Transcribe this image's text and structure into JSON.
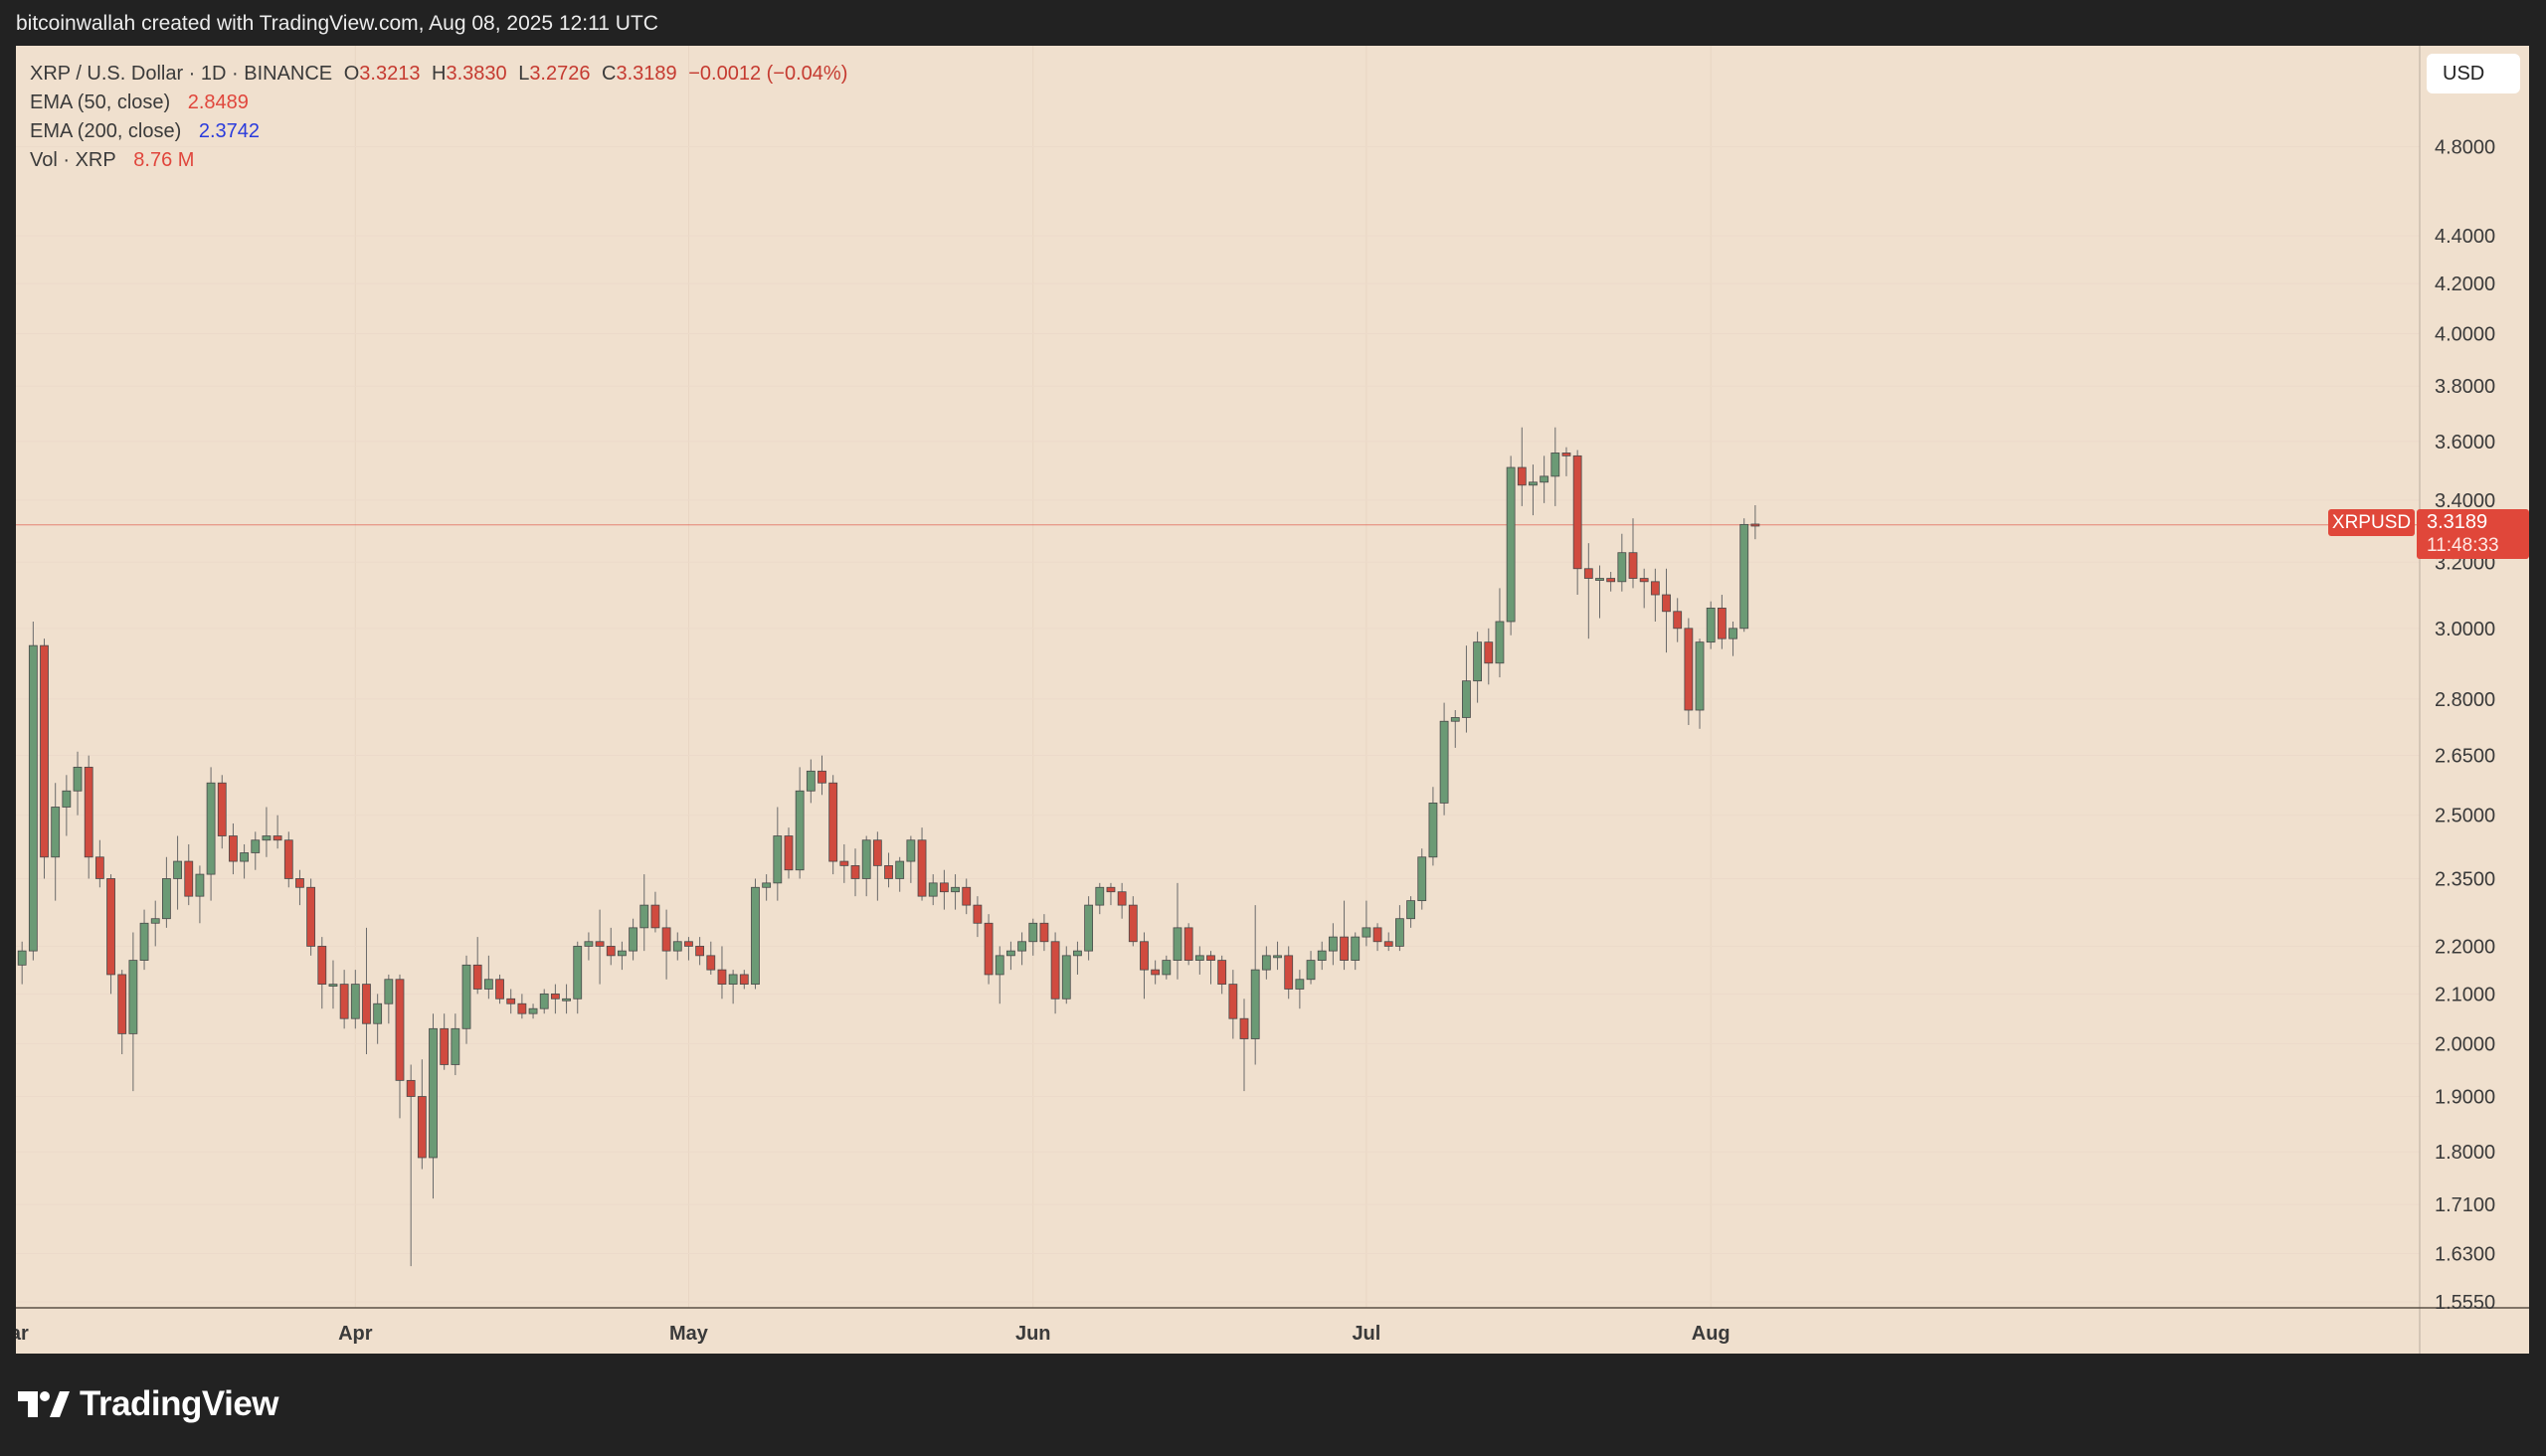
{
  "header": {
    "attribution": "bitcoinwallah created with TradingView.com, Aug 08, 2025 12:11 UTC"
  },
  "legend": {
    "symbol_line": "XRP / U.S. Dollar · 1D · BINANCE",
    "open_label": "O",
    "open": "3.3213",
    "high_label": "H",
    "high": "3.3830",
    "low_label": "L",
    "low": "3.2726",
    "close_label": "C",
    "close": "3.3189",
    "change": "−0.0012 (−0.04%)",
    "ema50_label": "EMA (50, close)",
    "ema50_value": "2.8489",
    "ema200_label": "EMA (200, close)",
    "ema200_value": "2.3742",
    "vol_label": "Vol · XRP",
    "vol_value": "8.76 M"
  },
  "currency_button": "USD",
  "price_marker": {
    "symbol": "XRPUSD",
    "price": "3.3189",
    "countdown": "11:48:33"
  },
  "footer": {
    "brand": "TradingView"
  },
  "colors": {
    "background": "#f0e0ce",
    "up": "#6b9a75",
    "down": "#d04b3f",
    "wick": "#6a6a6a",
    "price_line": "#e0473a"
  },
  "chart_data": {
    "type": "candlestick",
    "scale": "log",
    "ylim": [
      1.555,
      5.1
    ],
    "y_ticks": [
      "4.8000",
      "4.4000",
      "4.2000",
      "4.0000",
      "3.8000",
      "3.6000",
      "3.4000",
      "3.2000",
      "3.0000",
      "2.8000",
      "2.6500",
      "2.5000",
      "2.3500",
      "2.2000",
      "2.1000",
      "2.0000",
      "1.9000",
      "1.8000",
      "1.7100",
      "1.6300",
      "1.5550"
    ],
    "x_ticks": [
      {
        "label": "Mar",
        "day": 1
      },
      {
        "label": "Apr",
        "day": 32
      },
      {
        "label": "May",
        "day": 62
      },
      {
        "label": "Jun",
        "day": 93
      },
      {
        "label": "Jul",
        "day": 123
      },
      {
        "label": "Aug",
        "day": 154
      }
    ],
    "x_range_days": [
      1,
      182
    ],
    "current_price": 3.3189,
    "candles": [
      [
        1,
        2.2,
        2.22,
        2.18,
        2.16
      ],
      [
        2,
        2.16,
        2.21,
        2.12,
        2.19
      ],
      [
        3,
        2.19,
        3.02,
        2.17,
        2.95
      ],
      [
        4,
        2.95,
        2.97,
        2.35,
        2.4
      ],
      [
        5,
        2.4,
        2.58,
        2.3,
        2.52
      ],
      [
        6,
        2.52,
        2.6,
        2.45,
        2.56
      ],
      [
        7,
        2.56,
        2.66,
        2.5,
        2.62
      ],
      [
        8,
        2.62,
        2.65,
        2.35,
        2.4
      ],
      [
        9,
        2.4,
        2.44,
        2.33,
        2.35
      ],
      [
        10,
        2.35,
        2.36,
        2.1,
        2.14
      ],
      [
        11,
        2.14,
        2.15,
        1.98,
        2.02
      ],
      [
        12,
        2.02,
        2.23,
        1.91,
        2.17
      ],
      [
        13,
        2.17,
        2.28,
        2.15,
        2.25
      ],
      [
        14,
        2.25,
        2.3,
        2.2,
        2.26
      ],
      [
        15,
        2.26,
        2.4,
        2.24,
        2.35
      ],
      [
        16,
        2.35,
        2.45,
        2.28,
        2.39
      ],
      [
        17,
        2.39,
        2.43,
        2.29,
        2.31
      ],
      [
        18,
        2.31,
        2.38,
        2.25,
        2.36
      ],
      [
        19,
        2.36,
        2.62,
        2.3,
        2.58
      ],
      [
        20,
        2.58,
        2.6,
        2.42,
        2.45
      ],
      [
        21,
        2.45,
        2.48,
        2.36,
        2.39
      ],
      [
        22,
        2.39,
        2.43,
        2.35,
        2.41
      ],
      [
        23,
        2.41,
        2.46,
        2.37,
        2.44
      ],
      [
        24,
        2.44,
        2.52,
        2.4,
        2.45
      ],
      [
        25,
        2.45,
        2.5,
        2.42,
        2.44
      ],
      [
        26,
        2.44,
        2.46,
        2.33,
        2.35
      ],
      [
        27,
        2.35,
        2.37,
        2.29,
        2.33
      ],
      [
        28,
        2.33,
        2.35,
        2.18,
        2.2
      ],
      [
        29,
        2.2,
        2.22,
        2.07,
        2.12
      ],
      [
        30,
        2.12,
        2.17,
        2.07,
        2.12
      ],
      [
        31,
        2.12,
        2.15,
        2.03,
        2.05
      ],
      [
        32,
        2.05,
        2.15,
        2.03,
        2.12
      ],
      [
        33,
        2.12,
        2.24,
        1.98,
        2.04
      ],
      [
        34,
        2.04,
        2.1,
        2.0,
        2.08
      ],
      [
        35,
        2.08,
        2.14,
        2.04,
        2.13
      ],
      [
        36,
        2.13,
        2.14,
        1.86,
        1.93
      ],
      [
        37,
        1.93,
        1.96,
        1.61,
        1.9
      ],
      [
        38,
        1.9,
        1.97,
        1.77,
        1.79
      ],
      [
        39,
        1.79,
        2.06,
        1.72,
        2.03
      ],
      [
        40,
        2.03,
        2.06,
        1.95,
        1.96
      ],
      [
        41,
        1.96,
        2.06,
        1.94,
        2.03
      ],
      [
        42,
        2.03,
        2.18,
        2.0,
        2.16
      ],
      [
        43,
        2.16,
        2.22,
        2.1,
        2.11
      ],
      [
        44,
        2.11,
        2.18,
        2.09,
        2.13
      ],
      [
        45,
        2.13,
        2.14,
        2.08,
        2.09
      ],
      [
        46,
        2.09,
        2.11,
        2.06,
        2.08
      ],
      [
        47,
        2.08,
        2.1,
        2.05,
        2.06
      ],
      [
        48,
        2.06,
        2.08,
        2.05,
        2.07
      ],
      [
        49,
        2.07,
        2.11,
        2.06,
        2.1
      ],
      [
        50,
        2.1,
        2.12,
        2.06,
        2.09
      ],
      [
        51,
        2.09,
        2.12,
        2.06,
        2.09
      ],
      [
        52,
        2.09,
        2.21,
        2.06,
        2.2
      ],
      [
        53,
        2.2,
        2.23,
        2.17,
        2.21
      ],
      [
        54,
        2.21,
        2.28,
        2.12,
        2.2
      ],
      [
        55,
        2.2,
        2.24,
        2.16,
        2.18
      ],
      [
        56,
        2.18,
        2.21,
        2.15,
        2.19
      ],
      [
        57,
        2.19,
        2.26,
        2.17,
        2.24
      ],
      [
        58,
        2.24,
        2.36,
        2.19,
        2.29
      ],
      [
        59,
        2.29,
        2.32,
        2.23,
        2.24
      ],
      [
        60,
        2.24,
        2.28,
        2.13,
        2.19
      ],
      [
        61,
        2.19,
        2.23,
        2.17,
        2.21
      ],
      [
        62,
        2.21,
        2.22,
        2.17,
        2.2
      ],
      [
        63,
        2.2,
        2.22,
        2.16,
        2.18
      ],
      [
        64,
        2.18,
        2.21,
        2.14,
        2.15
      ],
      [
        65,
        2.15,
        2.2,
        2.09,
        2.12
      ],
      [
        66,
        2.12,
        2.15,
        2.08,
        2.14
      ],
      [
        67,
        2.14,
        2.15,
        2.11,
        2.12
      ],
      [
        68,
        2.12,
        2.35,
        2.11,
        2.33
      ],
      [
        69,
        2.33,
        2.36,
        2.3,
        2.34
      ],
      [
        70,
        2.34,
        2.52,
        2.3,
        2.45
      ],
      [
        71,
        2.45,
        2.47,
        2.35,
        2.37
      ],
      [
        72,
        2.37,
        2.62,
        2.35,
        2.56
      ],
      [
        73,
        2.56,
        2.64,
        2.53,
        2.61
      ],
      [
        74,
        2.61,
        2.65,
        2.55,
        2.58
      ],
      [
        75,
        2.58,
        2.6,
        2.36,
        2.39
      ],
      [
        76,
        2.39,
        2.43,
        2.34,
        2.38
      ],
      [
        77,
        2.38,
        2.42,
        2.31,
        2.35
      ],
      [
        78,
        2.35,
        2.45,
        2.31,
        2.44
      ],
      [
        79,
        2.44,
        2.46,
        2.3,
        2.38
      ],
      [
        80,
        2.38,
        2.41,
        2.33,
        2.35
      ],
      [
        81,
        2.35,
        2.4,
        2.32,
        2.39
      ],
      [
        82,
        2.39,
        2.45,
        2.34,
        2.44
      ],
      [
        83,
        2.44,
        2.47,
        2.3,
        2.31
      ],
      [
        84,
        2.31,
        2.36,
        2.29,
        2.34
      ],
      [
        85,
        2.34,
        2.37,
        2.28,
        2.32
      ],
      [
        86,
        2.32,
        2.36,
        2.28,
        2.33
      ],
      [
        87,
        2.33,
        2.35,
        2.27,
        2.29
      ],
      [
        88,
        2.29,
        2.31,
        2.22,
        2.25
      ],
      [
        89,
        2.25,
        2.27,
        2.12,
        2.14
      ],
      [
        90,
        2.14,
        2.2,
        2.08,
        2.18
      ],
      [
        91,
        2.18,
        2.21,
        2.15,
        2.19
      ],
      [
        92,
        2.19,
        2.23,
        2.16,
        2.21
      ],
      [
        93,
        2.21,
        2.26,
        2.18,
        2.25
      ],
      [
        94,
        2.25,
        2.27,
        2.19,
        2.21
      ],
      [
        95,
        2.21,
        2.23,
        2.06,
        2.09
      ],
      [
        96,
        2.09,
        2.2,
        2.08,
        2.18
      ],
      [
        97,
        2.18,
        2.21,
        2.14,
        2.19
      ],
      [
        98,
        2.19,
        2.31,
        2.17,
        2.29
      ],
      [
        99,
        2.29,
        2.34,
        2.27,
        2.33
      ],
      [
        100,
        2.33,
        2.34,
        2.29,
        2.32
      ],
      [
        101,
        2.32,
        2.34,
        2.26,
        2.29
      ],
      [
        102,
        2.29,
        2.31,
        2.2,
        2.21
      ],
      [
        103,
        2.21,
        2.23,
        2.09,
        2.15
      ],
      [
        104,
        2.15,
        2.17,
        2.12,
        2.14
      ],
      [
        105,
        2.14,
        2.18,
        2.13,
        2.17
      ],
      [
        106,
        2.17,
        2.34,
        2.13,
        2.24
      ],
      [
        107,
        2.24,
        2.25,
        2.16,
        2.17
      ],
      [
        108,
        2.17,
        2.2,
        2.14,
        2.18
      ],
      [
        109,
        2.18,
        2.19,
        2.12,
        2.17
      ],
      [
        110,
        2.17,
        2.18,
        2.1,
        2.12
      ],
      [
        111,
        2.12,
        2.15,
        2.01,
        2.05
      ],
      [
        112,
        2.05,
        2.09,
        1.91,
        2.01
      ],
      [
        113,
        2.01,
        2.29,
        1.96,
        2.15
      ],
      [
        114,
        2.15,
        2.2,
        2.13,
        2.18
      ],
      [
        115,
        2.18,
        2.21,
        2.15,
        2.18
      ],
      [
        116,
        2.18,
        2.2,
        2.09,
        2.11
      ],
      [
        117,
        2.11,
        2.15,
        2.07,
        2.13
      ],
      [
        118,
        2.13,
        2.19,
        2.12,
        2.17
      ],
      [
        119,
        2.17,
        2.21,
        2.15,
        2.19
      ],
      [
        120,
        2.19,
        2.25,
        2.16,
        2.22
      ],
      [
        121,
        2.22,
        2.3,
        2.15,
        2.17
      ],
      [
        122,
        2.17,
        2.23,
        2.15,
        2.22
      ],
      [
        123,
        2.22,
        2.3,
        2.2,
        2.24
      ],
      [
        124,
        2.24,
        2.25,
        2.19,
        2.21
      ],
      [
        125,
        2.21,
        2.23,
        2.19,
        2.2
      ],
      [
        126,
        2.2,
        2.29,
        2.19,
        2.26
      ],
      [
        127,
        2.26,
        2.31,
        2.24,
        2.3
      ],
      [
        128,
        2.3,
        2.42,
        2.28,
        2.4
      ],
      [
        129,
        2.4,
        2.57,
        2.38,
        2.53
      ],
      [
        130,
        2.53,
        2.79,
        2.5,
        2.74
      ],
      [
        131,
        2.74,
        2.77,
        2.67,
        2.75
      ],
      [
        132,
        2.75,
        2.95,
        2.71,
        2.85
      ],
      [
        133,
        2.85,
        2.99,
        2.79,
        2.96
      ],
      [
        134,
        2.96,
        3.0,
        2.84,
        2.9
      ],
      [
        135,
        2.9,
        3.12,
        2.86,
        3.02
      ],
      [
        136,
        3.02,
        3.55,
        2.98,
        3.51
      ],
      [
        137,
        3.51,
        3.65,
        3.38,
        3.45
      ],
      [
        138,
        3.45,
        3.52,
        3.35,
        3.46
      ],
      [
        139,
        3.46,
        3.55,
        3.39,
        3.48
      ],
      [
        140,
        3.48,
        3.65,
        3.38,
        3.56
      ],
      [
        141,
        3.56,
        3.58,
        3.48,
        3.55
      ],
      [
        142,
        3.55,
        3.57,
        3.1,
        3.18
      ],
      [
        143,
        3.18,
        3.26,
        2.97,
        3.15
      ],
      [
        144,
        3.15,
        3.19,
        3.03,
        3.15
      ],
      [
        145,
        3.15,
        3.17,
        3.11,
        3.14
      ],
      [
        146,
        3.14,
        3.29,
        3.11,
        3.23
      ],
      [
        147,
        3.23,
        3.34,
        3.12,
        3.15
      ],
      [
        148,
        3.15,
        3.18,
        3.06,
        3.14
      ],
      [
        149,
        3.14,
        3.18,
        3.02,
        3.1
      ],
      [
        150,
        3.1,
        3.18,
        2.93,
        3.05
      ],
      [
        151,
        3.05,
        3.09,
        2.96,
        3.0
      ],
      [
        152,
        3.0,
        3.03,
        2.73,
        2.77
      ],
      [
        153,
        2.77,
        2.97,
        2.72,
        2.96
      ],
      [
        154,
        2.96,
        3.08,
        2.94,
        3.06
      ],
      [
        155,
        3.06,
        3.1,
        2.94,
        2.97
      ],
      [
        156,
        2.97,
        3.02,
        2.92,
        3.0
      ],
      [
        157,
        3.0,
        3.34,
        2.99,
        3.32
      ],
      [
        158,
        3.3213,
        3.383,
        3.2726,
        3.3189
      ]
    ]
  }
}
